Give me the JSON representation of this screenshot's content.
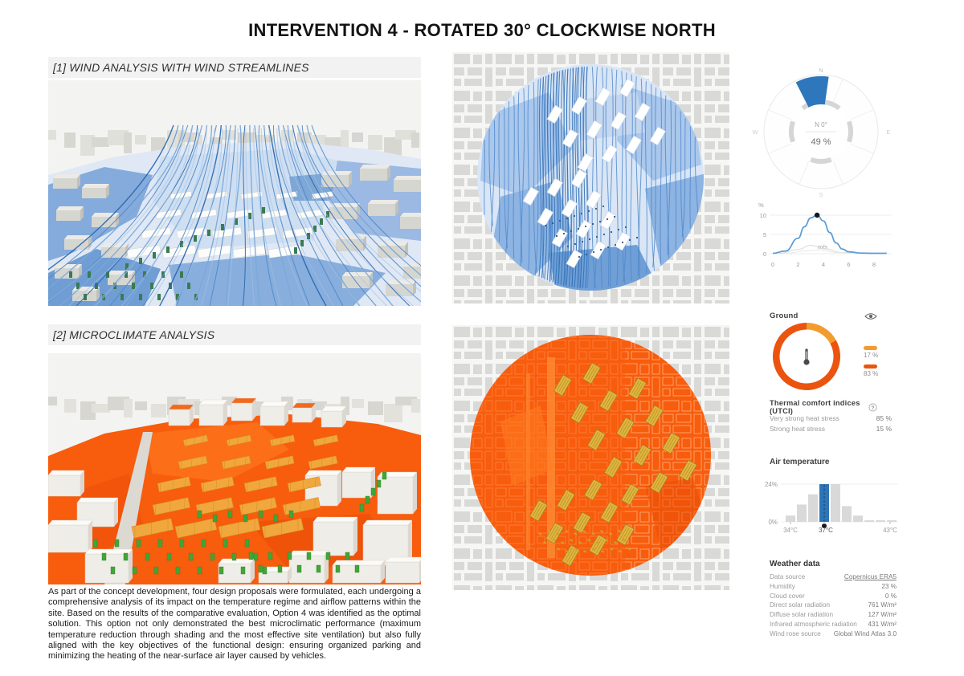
{
  "title": "INTERVENTION 4 - ROTATED 30° CLOCKWISE NORTH",
  "sections": [
    {
      "label": "[1] WIND ANALYSIS WITH WIND STREAMLINES"
    },
    {
      "label": "[2] MICROCLIMATE ANALYSIS"
    }
  ],
  "description": "As part of the concept development, four design proposals were formulated, each undergoing a comprehensive analysis of its impact on the temperature regime and airflow patterns within the site. Based on the results of the comparative evaluation, Option 4 was identified as the optimal solution. This option not only demonstrated the best microclimatic performance (maximum temperature reduction through shading and the most effective site ventilation) but also fully aligned with the key objectives of the functional design: ensuring organized parking and minimizing the heating of the near-surface air layer caused by vehicles.",
  "wind_rose": {
    "compass": {
      "n": "N",
      "e": "E",
      "s": "S",
      "w": "W"
    },
    "center_direction": "N 0°",
    "center_value": "49 %"
  },
  "wind_speed_chart": {
    "y_unit": "%",
    "y_ticks": [
      "10",
      "5",
      "0"
    ],
    "x_ticks": [
      "0",
      "2",
      "4",
      "6",
      "8"
    ],
    "x_unit": "m/s"
  },
  "ground": {
    "title": "Ground",
    "legend": [
      {
        "value": "17 %"
      },
      {
        "value": "83 %"
      }
    ]
  },
  "utci": {
    "title": "Thermal comfort indices (UTCI)",
    "rows": [
      {
        "label": "Very strong heat stress",
        "value": "85 %"
      },
      {
        "label": "Strong heat stress",
        "value": "15 %"
      }
    ]
  },
  "air_temperature": {
    "title": "Air temperature",
    "y_max": "24%",
    "y_min": "0%",
    "x_ticks": [
      "34°C",
      "37°C",
      "43°C"
    ]
  },
  "weather": {
    "title": "Weather data",
    "rows": [
      {
        "label": "Data source",
        "value": "Copernicus ERA5",
        "link": true
      },
      {
        "label": "Humidity",
        "value": "23 %"
      },
      {
        "label": "Cloud cover",
        "value": "0 %"
      },
      {
        "label": "Direct solar radiation",
        "value": "761 W/m²"
      },
      {
        "label": "Diffuse solar radiation",
        "value": "127 W/m²"
      },
      {
        "label": "Infrared atmospheric radiation",
        "value": "431 W/m²"
      },
      {
        "label": "Wind rose source",
        "value": "Global Wind Atlas 3.0"
      }
    ]
  },
  "ui": {
    "help_glyph": "?"
  },
  "colors": {
    "wind_accent": "#2E77BD",
    "heat_accent": "#F85C0D",
    "link": "#6F9FC8",
    "bar_highlight": "#2E75B6"
  },
  "chart_data": [
    {
      "type": "pie",
      "name": "wind-rose",
      "title": "Wind rose",
      "selected_direction": "N 0°",
      "selected_frequency_pct": 49,
      "sectors": [
        {
          "direction": "N",
          "value_pct": 49
        }
      ]
    },
    {
      "type": "line",
      "name": "wind-speed-distribution",
      "xlabel": "m/s",
      "ylabel": "%",
      "xlim": [
        0,
        9
      ],
      "ylim": [
        0,
        10
      ],
      "x": [
        0,
        1,
        2,
        2.5,
        3,
        3.5,
        4,
        4.5,
        5,
        5.5,
        6,
        7,
        8,
        9
      ],
      "y": [
        0.1,
        0.7,
        4,
        7,
        9.3,
        10,
        8.5,
        5.5,
        2.8,
        1.2,
        0.5,
        0.15,
        0.1,
        0.1
      ]
    },
    {
      "type": "pie",
      "name": "ground-surface-share",
      "values": [
        17,
        83
      ],
      "labels": [
        "17 %",
        "83 %"
      ],
      "colors": [
        "#F39B2D",
        "#EB540E"
      ]
    },
    {
      "type": "bar",
      "name": "air-temperature-histogram",
      "ylim": [
        0,
        24
      ],
      "values": [
        4,
        11,
        17.5,
        24,
        24,
        10,
        4,
        1,
        1,
        1
      ],
      "highlight_index": 3,
      "x_tick_labels": {
        "0": "34°C",
        "3": "37°C",
        "9": "43°C"
      }
    }
  ]
}
